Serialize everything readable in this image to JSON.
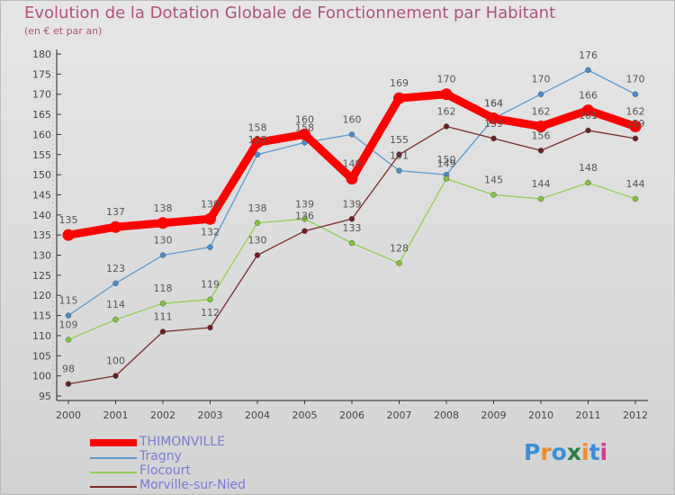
{
  "chart_data": {
    "type": "line",
    "title": "Evolution de la Dotation Globale de Fonctionnement par Habitant",
    "subtitle": "(en € et par an)",
    "xlabel": "",
    "ylabel": "",
    "categories": [
      "2000",
      "2001",
      "2002",
      "2003",
      "2004",
      "2005",
      "2006",
      "2007",
      "2008",
      "2009",
      "2010",
      "2011",
      "2012"
    ],
    "ylim": [
      95,
      180
    ],
    "yticks": [
      95,
      100,
      105,
      110,
      115,
      120,
      125,
      130,
      135,
      140,
      145,
      150,
      155,
      160,
      165,
      170,
      175,
      180
    ],
    "grid": false,
    "legend_position": "bottom-left",
    "series": [
      {
        "name": "Tragny",
        "color": "#5b9bd5",
        "point_color": "#4a8bd0",
        "values": [
          115,
          123,
          130,
          132,
          155,
          158,
          160,
          151,
          150,
          164,
          170,
          176,
          170
        ]
      },
      {
        "name": "Flocourt",
        "color": "#92d050",
        "point_color": "#7fc43a",
        "values": [
          109,
          114,
          118,
          119,
          138,
          139,
          133,
          128,
          149,
          145,
          144,
          148,
          144
        ]
      },
      {
        "name": "Morville-sur-Nied",
        "color": "#7a2a2a",
        "point_color": "#6b1f1f",
        "values": [
          98,
          100,
          111,
          112,
          130,
          136,
          139,
          155,
          162,
          159,
          156,
          161,
          159
        ]
      },
      {
        "name": "THIMONVILLE",
        "color": "#ff0000",
        "point_color": "#ff0000",
        "values": [
          135,
          137,
          138,
          139,
          158,
          160,
          149,
          169,
          170,
          164,
          162,
          166,
          162
        ]
      }
    ],
    "legend": [
      "THIMONVILLE",
      "Tragny",
      "Flocourt",
      "Morville-sur-Nied"
    ]
  },
  "logo": {
    "text": "Proxiti",
    "letters": [
      "P",
      "r",
      "o",
      "x",
      "i",
      "t",
      "i"
    ],
    "colors": [
      "#3a8fd8",
      "#f28c28",
      "#3a8fd8",
      "#2f7f3f",
      "#f28c28",
      "#3a8fd8",
      "#d23c8f"
    ]
  }
}
